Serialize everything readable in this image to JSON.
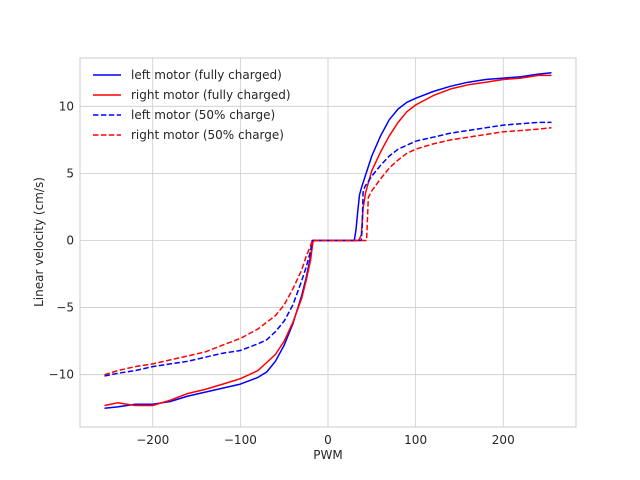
{
  "chart_data": {
    "type": "line",
    "title": "",
    "xlabel": "PWM",
    "ylabel": "Linear velocity (cm/s)",
    "xlim": [
      -283,
      283
    ],
    "ylim": [
      -13.9,
      13.6
    ],
    "xticks": [
      -200,
      -100,
      0,
      100,
      200
    ],
    "yticks": [
      -10,
      -5,
      0,
      5,
      10
    ],
    "xtick_labels": [
      "−200",
      "−100",
      "0",
      "100",
      "200"
    ],
    "ytick_labels": [
      "−10",
      "−5",
      "0",
      "5",
      "10"
    ],
    "grid": true,
    "legend_position": "top-left",
    "series": [
      {
        "name": "left motor (fully charged)",
        "color": "#0000ff",
        "dash": "solid",
        "points": [
          [
            -255,
            -12.5
          ],
          [
            -240,
            -12.4
          ],
          [
            -220,
            -12.2
          ],
          [
            -200,
            -12.2
          ],
          [
            -180,
            -12.0
          ],
          [
            -160,
            -11.6
          ],
          [
            -140,
            -11.3
          ],
          [
            -120,
            -11.0
          ],
          [
            -100,
            -10.7
          ],
          [
            -80,
            -10.2
          ],
          [
            -70,
            -9.8
          ],
          [
            -60,
            -9.0
          ],
          [
            -50,
            -7.8
          ],
          [
            -40,
            -6.2
          ],
          [
            -30,
            -4.1
          ],
          [
            -25,
            -2.8
          ],
          [
            -20,
            -1.2
          ],
          [
            -17,
            0
          ],
          [
            0,
            0
          ],
          [
            15,
            0
          ],
          [
            30,
            0
          ],
          [
            32,
            0.8
          ],
          [
            34,
            2.2
          ],
          [
            36,
            3.4
          ],
          [
            38,
            3.9
          ],
          [
            42,
            4.7
          ],
          [
            50,
            6.3
          ],
          [
            60,
            7.8
          ],
          [
            70,
            9.0
          ],
          [
            80,
            9.8
          ],
          [
            90,
            10.3
          ],
          [
            100,
            10.6
          ],
          [
            120,
            11.1
          ],
          [
            140,
            11.5
          ],
          [
            160,
            11.8
          ],
          [
            180,
            12.0
          ],
          [
            200,
            12.1
          ],
          [
            220,
            12.2
          ],
          [
            240,
            12.4
          ],
          [
            255,
            12.5
          ]
        ]
      },
      {
        "name": "right motor (fully charged)",
        "color": "#ff0000",
        "dash": "solid",
        "points": [
          [
            -255,
            -12.3
          ],
          [
            -240,
            -12.1
          ],
          [
            -220,
            -12.3
          ],
          [
            -200,
            -12.3
          ],
          [
            -180,
            -11.9
          ],
          [
            -160,
            -11.4
          ],
          [
            -140,
            -11.1
          ],
          [
            -120,
            -10.7
          ],
          [
            -100,
            -10.3
          ],
          [
            -80,
            -9.7
          ],
          [
            -60,
            -8.5
          ],
          [
            -50,
            -7.5
          ],
          [
            -40,
            -6.1
          ],
          [
            -30,
            -4.3
          ],
          [
            -25,
            -3.0
          ],
          [
            -20,
            -1.5
          ],
          [
            -17,
            0
          ],
          [
            0,
            0
          ],
          [
            20,
            0
          ],
          [
            35,
            0
          ],
          [
            38,
            0.4
          ],
          [
            40,
            2.4
          ],
          [
            43,
            3.6
          ],
          [
            50,
            5.2
          ],
          [
            60,
            6.6
          ],
          [
            70,
            7.8
          ],
          [
            80,
            8.8
          ],
          [
            90,
            9.6
          ],
          [
            100,
            10.1
          ],
          [
            120,
            10.8
          ],
          [
            140,
            11.3
          ],
          [
            160,
            11.6
          ],
          [
            180,
            11.8
          ],
          [
            200,
            12.0
          ],
          [
            220,
            12.1
          ],
          [
            240,
            12.3
          ],
          [
            255,
            12.3
          ]
        ]
      },
      {
        "name": "left motor (50% charge)",
        "color": "#0000ff",
        "dash": "dashed",
        "points": [
          [
            -255,
            -10.1
          ],
          [
            -240,
            -9.9
          ],
          [
            -220,
            -9.7
          ],
          [
            -200,
            -9.4
          ],
          [
            -180,
            -9.2
          ],
          [
            -160,
            -9.0
          ],
          [
            -140,
            -8.7
          ],
          [
            -120,
            -8.4
          ],
          [
            -100,
            -8.2
          ],
          [
            -80,
            -7.7
          ],
          [
            -70,
            -7.4
          ],
          [
            -60,
            -6.8
          ],
          [
            -50,
            -6.0
          ],
          [
            -40,
            -4.8
          ],
          [
            -30,
            -3.0
          ],
          [
            -25,
            -2.0
          ],
          [
            -20,
            -0.8
          ],
          [
            -18,
            0
          ],
          [
            0,
            0
          ],
          [
            20,
            0
          ],
          [
            38,
            0
          ],
          [
            39,
            1.0
          ],
          [
            40,
            3.6
          ],
          [
            42,
            4.0
          ],
          [
            50,
            4.8
          ],
          [
            60,
            5.6
          ],
          [
            70,
            6.3
          ],
          [
            80,
            6.8
          ],
          [
            90,
            7.1
          ],
          [
            100,
            7.4
          ],
          [
            120,
            7.7
          ],
          [
            140,
            8.0
          ],
          [
            160,
            8.2
          ],
          [
            180,
            8.4
          ],
          [
            200,
            8.6
          ],
          [
            220,
            8.7
          ],
          [
            240,
            8.8
          ],
          [
            255,
            8.8
          ]
        ]
      },
      {
        "name": "right motor (50% charge)",
        "color": "#ff0000",
        "dash": "dashed",
        "points": [
          [
            -255,
            -10.0
          ],
          [
            -240,
            -9.7
          ],
          [
            -220,
            -9.4
          ],
          [
            -200,
            -9.2
          ],
          [
            -180,
            -8.9
          ],
          [
            -160,
            -8.6
          ],
          [
            -140,
            -8.3
          ],
          [
            -120,
            -7.8
          ],
          [
            -100,
            -7.3
          ],
          [
            -80,
            -6.6
          ],
          [
            -60,
            -5.6
          ],
          [
            -50,
            -4.8
          ],
          [
            -40,
            -3.6
          ],
          [
            -30,
            -2.2
          ],
          [
            -25,
            -1.2
          ],
          [
            -20,
            -0.4
          ],
          [
            -18,
            0
          ],
          [
            0,
            0
          ],
          [
            30,
            0
          ],
          [
            44,
            0
          ],
          [
            45,
            1.5
          ],
          [
            46,
            3.2
          ],
          [
            50,
            3.7
          ],
          [
            60,
            4.6
          ],
          [
            70,
            5.4
          ],
          [
            80,
            6.0
          ],
          [
            90,
            6.5
          ],
          [
            100,
            6.8
          ],
          [
            120,
            7.2
          ],
          [
            140,
            7.5
          ],
          [
            160,
            7.7
          ],
          [
            180,
            7.9
          ],
          [
            200,
            8.1
          ],
          [
            220,
            8.2
          ],
          [
            240,
            8.3
          ],
          [
            255,
            8.4
          ]
        ]
      }
    ]
  }
}
